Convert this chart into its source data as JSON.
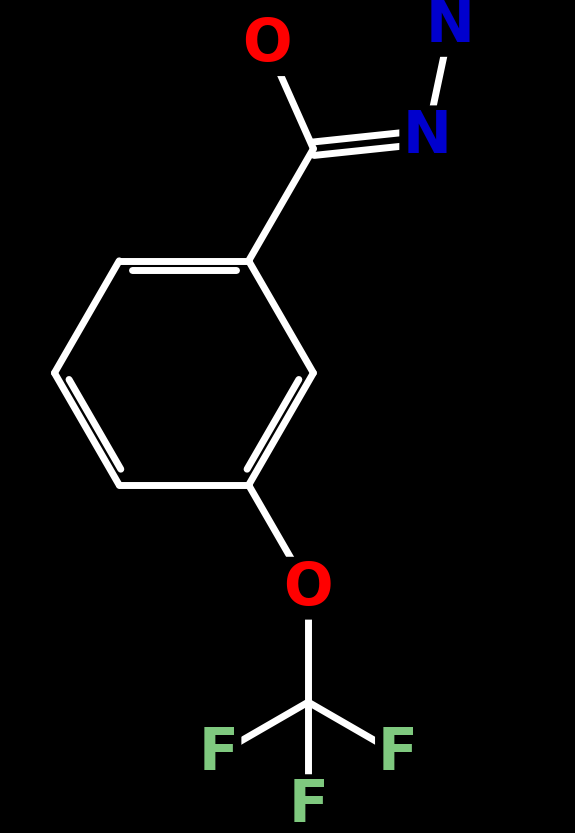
{
  "background_color": "#000000",
  "bond_color": "#ffffff",
  "bond_width": 5.0,
  "atom_colors": {
    "O": "#ff0000",
    "N": "#0000cd",
    "F": "#7fc97f",
    "C": "#ffffff"
  },
  "font_size_atom": 42,
  "figsize": [
    5.75,
    8.33
  ],
  "dpi": 100,
  "xlim": [
    0,
    10
  ],
  "ylim": [
    0,
    14.5
  ]
}
